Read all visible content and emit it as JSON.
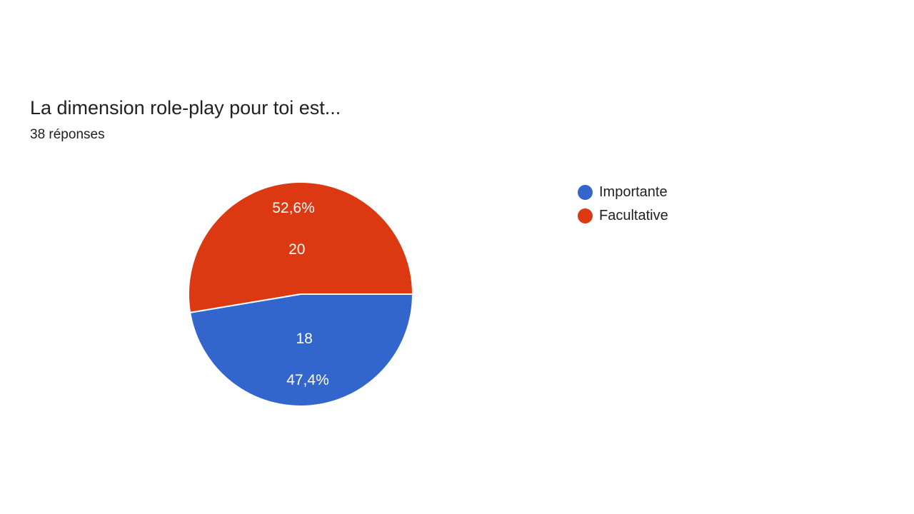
{
  "chart_data": {
    "type": "pie",
    "title": "La dimension role-play pour toi est...",
    "subtitle": "38 réponses",
    "slices": [
      {
        "name": "Importante",
        "value": 18,
        "percent_label": "47,4%",
        "color": "#3366cc"
      },
      {
        "name": "Facultative",
        "value": 20,
        "percent_label": "52,6%",
        "color": "#dc3912"
      }
    ],
    "legend_position": "right"
  }
}
